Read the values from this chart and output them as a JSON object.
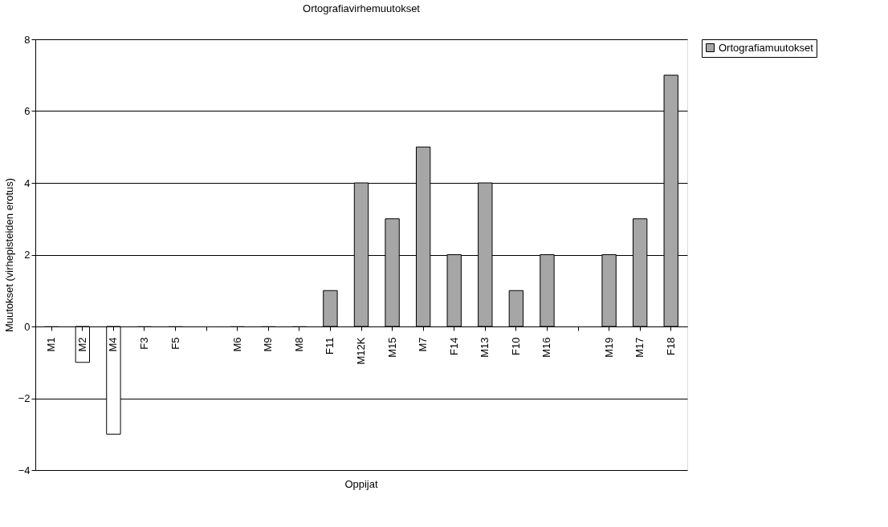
{
  "chart_data": {
    "type": "bar",
    "title": "Ortografiavirhemuutokset",
    "xlabel": "Oppijat",
    "ylabel": "Muutokset (virhepisteiden erotus)",
    "categories": [
      "M1",
      "M2",
      "M4",
      "F3",
      "F5",
      null,
      "M6",
      "M9",
      "M8",
      "F11",
      "M12K",
      "M15",
      "M7",
      "F14",
      "M13",
      "F10",
      "M16",
      null,
      "M19",
      "M17",
      "F18"
    ],
    "series": [
      {
        "name": "Ortografiamuutokset",
        "color": "#a6a6a6",
        "values": [
          0,
          -1,
          -3,
          0,
          0,
          null,
          0,
          0,
          0,
          1,
          4,
          3,
          5,
          2,
          4,
          1,
          2,
          null,
          2,
          3,
          7
        ],
        "colors": [
          "#a6a6a6",
          "#ffffff",
          "#ffffff",
          "#a6a6a6",
          "#a6a6a6",
          "#a6a6a6",
          "#a6a6a6",
          "#a6a6a6",
          "#a6a6a6",
          "#a6a6a6",
          "#a6a6a6",
          "#a6a6a6",
          "#a6a6a6",
          "#a6a6a6",
          "#a6a6a6",
          "#a6a6a6",
          "#a6a6a6",
          "#a6a6a6",
          "#a6a6a6",
          "#a6a6a6",
          "#a6a6a6"
        ]
      }
    ],
    "ylim": [
      -4,
      8
    ],
    "yticks": [
      -4,
      -2,
      0,
      2,
      4,
      6,
      8
    ],
    "grid": "y",
    "legend": "right"
  }
}
